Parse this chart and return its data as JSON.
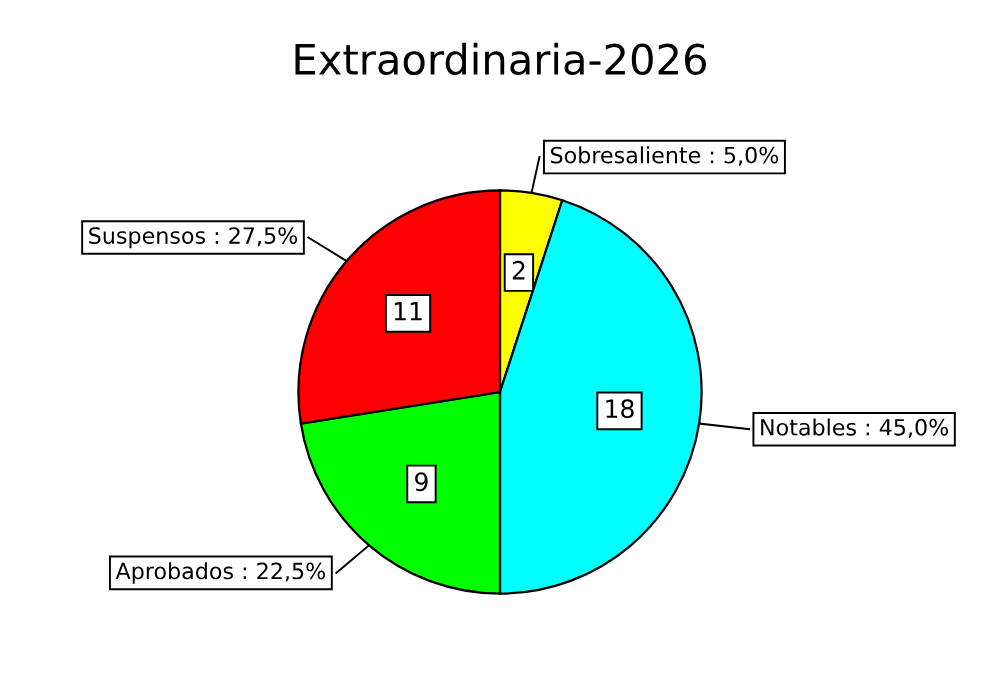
{
  "chart_data": {
    "type": "pie",
    "title": "Extraordinaria-2026",
    "categories": [
      "Sobresaliente : 5,0%",
      "Notables : 45,0%",
      "Aprobados : 22,5%",
      "Suspensos : 27,5%"
    ],
    "values": [
      2,
      18,
      9,
      11
    ],
    "colors": [
      "#ffff00",
      "#00ffff",
      "#00ff00",
      "#ff0000"
    ],
    "data_labels": true,
    "legend": false
  }
}
